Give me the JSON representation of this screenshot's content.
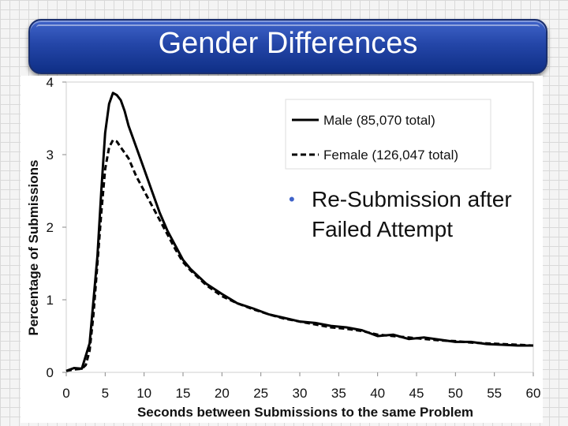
{
  "slide": {
    "title": "Gender Differences",
    "bullet": "Re-Submission after Failed Attempt"
  },
  "colors": {
    "title_bar": "#2446a8",
    "bullet": "#3f63c9",
    "series": "#000000"
  },
  "chart_data": {
    "type": "line",
    "title": "",
    "xlabel": "Seconds between Submissions to the same Problem",
    "ylabel": "Percentage of Submissions",
    "xlim": [
      0,
      60
    ],
    "ylim": [
      0,
      4
    ],
    "x_ticks": [
      0,
      5,
      10,
      15,
      20,
      25,
      30,
      35,
      40,
      45,
      50,
      55,
      60
    ],
    "y_ticks": [
      0,
      1,
      2,
      3,
      4
    ],
    "grid": false,
    "legend_position": "top-right",
    "series": [
      {
        "name": "Male (85,070 total)",
        "style": "solid",
        "x": [
          0,
          1,
          2,
          3,
          4,
          4.5,
          5,
          5.5,
          6,
          6.5,
          7,
          7.5,
          8,
          9,
          10,
          11,
          12,
          13,
          14,
          15,
          16,
          18,
          20,
          22,
          24,
          26,
          28,
          30,
          32,
          34,
          36,
          38,
          40,
          42,
          44,
          46,
          48,
          50,
          52,
          54,
          56,
          58,
          60
        ],
        "y": [
          0.02,
          0.06,
          0.05,
          0.4,
          1.6,
          2.5,
          3.3,
          3.7,
          3.85,
          3.82,
          3.75,
          3.6,
          3.4,
          3.1,
          2.8,
          2.5,
          2.2,
          1.95,
          1.75,
          1.55,
          1.42,
          1.22,
          1.08,
          0.95,
          0.88,
          0.8,
          0.75,
          0.7,
          0.68,
          0.64,
          0.62,
          0.58,
          0.5,
          0.52,
          0.46,
          0.48,
          0.45,
          0.42,
          0.42,
          0.39,
          0.38,
          0.37,
          0.37
        ]
      },
      {
        "name": "Female (126,047 total)",
        "style": "dashed",
        "x": [
          0,
          1,
          2,
          2.5,
          3,
          3.5,
          4,
          4.5,
          5,
          5.5,
          6,
          6.5,
          7,
          8,
          9,
          10,
          11,
          12,
          13,
          14,
          15,
          16,
          18,
          20,
          22,
          24,
          26,
          28,
          30,
          32,
          34,
          36,
          38,
          40,
          42,
          44,
          46,
          48,
          50,
          52,
          54,
          56,
          58,
          60
        ],
        "y": [
          0.02,
          0.04,
          0.05,
          0.1,
          0.3,
          0.8,
          1.5,
          2.2,
          2.8,
          3.1,
          3.2,
          3.18,
          3.1,
          2.95,
          2.7,
          2.5,
          2.3,
          2.1,
          1.9,
          1.7,
          1.52,
          1.4,
          1.2,
          1.05,
          0.95,
          0.87,
          0.8,
          0.74,
          0.7,
          0.66,
          0.62,
          0.6,
          0.57,
          0.52,
          0.5,
          0.48,
          0.46,
          0.44,
          0.43,
          0.41,
          0.4,
          0.39,
          0.38,
          0.37
        ]
      }
    ]
  }
}
